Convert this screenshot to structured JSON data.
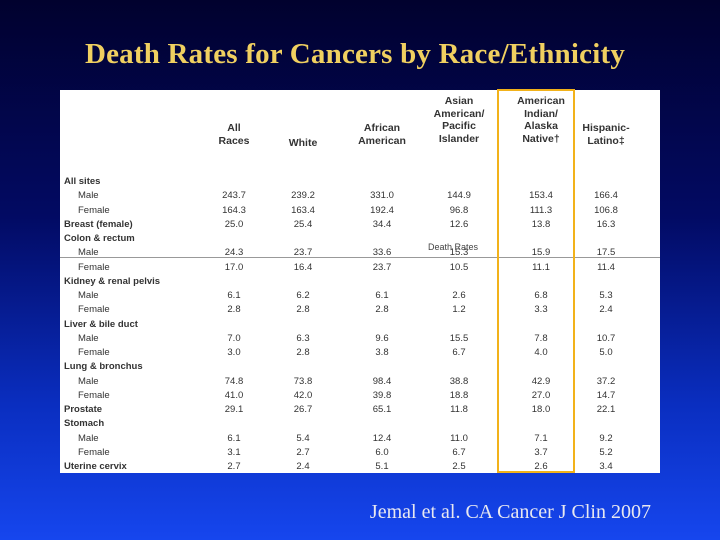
{
  "title": "Death Rates for Cancers by Race/Ethnicity",
  "citation": "Jemal et al. CA Cancer J Clin 2007",
  "table": {
    "columns": [
      [
        "All",
        "Races"
      ],
      [
        "White"
      ],
      [
        "African",
        "American"
      ],
      [
        "Asian",
        "American/",
        "Pacific",
        "Islander"
      ],
      [
        "American",
        "Indian/",
        "Alaska",
        "Native†"
      ],
      [
        "Hispanic-",
        "Latino‡"
      ]
    ],
    "subheader": "Death Rates",
    "rows": [
      {
        "label": "All sites",
        "kind": "cat",
        "values": []
      },
      {
        "label": "Male",
        "kind": "sub",
        "values": [
          "243.7",
          "239.2",
          "331.0",
          "144.9",
          "153.4",
          "166.4"
        ]
      },
      {
        "label": "Female",
        "kind": "sub",
        "values": [
          "164.3",
          "163.4",
          "192.4",
          "96.8",
          "111.3",
          "106.8"
        ]
      },
      {
        "label": "Breast (female)",
        "kind": "cat",
        "values": [
          "25.0",
          "25.4",
          "34.4",
          "12.6",
          "13.8",
          "16.3"
        ]
      },
      {
        "label": "Colon & rectum",
        "kind": "cat",
        "values": []
      },
      {
        "label": "Male",
        "kind": "sub",
        "values": [
          "24.3",
          "23.7",
          "33.6",
          "15.3",
          "15.9",
          "17.5"
        ]
      },
      {
        "label": "Female",
        "kind": "sub",
        "values": [
          "17.0",
          "16.4",
          "23.7",
          "10.5",
          "11.1",
          "11.4"
        ]
      },
      {
        "label": "Kidney & renal pelvis",
        "kind": "cat",
        "values": []
      },
      {
        "label": "Male",
        "kind": "sub",
        "values": [
          "6.1",
          "6.2",
          "6.1",
          "2.6",
          "6.8",
          "5.3"
        ]
      },
      {
        "label": "Female",
        "kind": "sub",
        "values": [
          "2.8",
          "2.8",
          "2.8",
          "1.2",
          "3.3",
          "2.4"
        ]
      },
      {
        "label": "Liver & bile duct",
        "kind": "cat",
        "values": []
      },
      {
        "label": "Male",
        "kind": "sub",
        "values": [
          "7.0",
          "6.3",
          "9.6",
          "15.5",
          "7.8",
          "10.7"
        ]
      },
      {
        "label": "Female",
        "kind": "sub",
        "values": [
          "3.0",
          "2.8",
          "3.8",
          "6.7",
          "4.0",
          "5.0"
        ]
      },
      {
        "label": "Lung & bronchus",
        "kind": "cat",
        "values": []
      },
      {
        "label": "Male",
        "kind": "sub",
        "values": [
          "74.8",
          "73.8",
          "98.4",
          "38.8",
          "42.9",
          "37.2"
        ]
      },
      {
        "label": "Female",
        "kind": "sub",
        "values": [
          "41.0",
          "42.0",
          "39.8",
          "18.8",
          "27.0",
          "14.7"
        ]
      },
      {
        "label": "Prostate",
        "kind": "cat",
        "values": [
          "29.1",
          "26.7",
          "65.1",
          "11.8",
          "18.0",
          "22.1"
        ]
      },
      {
        "label": "Stomach",
        "kind": "cat",
        "values": []
      },
      {
        "label": "Male",
        "kind": "sub",
        "values": [
          "6.1",
          "5.4",
          "12.4",
          "11.0",
          "7.1",
          "9.2"
        ]
      },
      {
        "label": "Female",
        "kind": "sub",
        "values": [
          "3.1",
          "2.7",
          "6.0",
          "6.7",
          "3.7",
          "5.2"
        ]
      },
      {
        "label": "Uterine cervix",
        "kind": "cat",
        "values": [
          "2.7",
          "2.4",
          "5.1",
          "2.5",
          "2.6",
          "3.4"
        ]
      }
    ]
  },
  "colors": {
    "title": "#f0d060",
    "highlight": "#f2b21a",
    "citation": "#e8e8f0"
  }
}
